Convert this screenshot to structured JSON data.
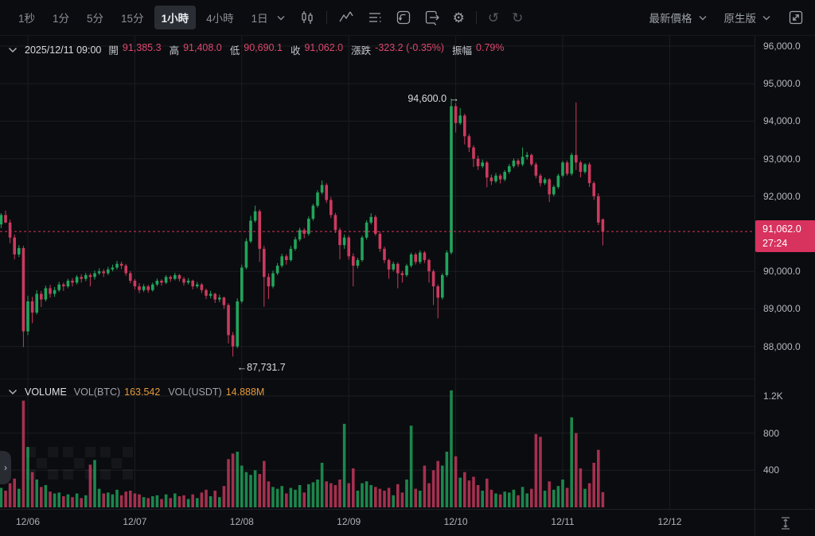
{
  "toolbar": {
    "timeframes": [
      {
        "label": "1秒",
        "active": false
      },
      {
        "label": "1分",
        "active": false
      },
      {
        "label": "5分",
        "active": false
      },
      {
        "label": "15分",
        "active": false
      },
      {
        "label": "1小時",
        "active": true
      },
      {
        "label": "4小時",
        "active": false
      },
      {
        "label": "1日",
        "active": false
      }
    ],
    "price_mode": "最新價格",
    "version": "原生版",
    "glyphs": {
      "settings": "⚙",
      "undo": "↺",
      "redo": "↻"
    }
  },
  "ohlc": {
    "datetime": "2025/12/11 09:00",
    "fields": [
      {
        "label": "開",
        "value": "91,385.3"
      },
      {
        "label": "高",
        "value": "91,408.0"
      },
      {
        "label": "低",
        "value": "90,690.1"
      },
      {
        "label": "收",
        "value": "91,062.0"
      },
      {
        "label": "漲跌",
        "value": "-323.2 (-0.35%)"
      },
      {
        "label": "振幅",
        "value": "0.79%"
      }
    ]
  },
  "volume_header": {
    "title": "VOLUME",
    "fields": [
      {
        "label": "VOL(BTC)",
        "value": "163.542"
      },
      {
        "label": "VOL(USDT)",
        "value": "14.888M"
      }
    ]
  },
  "axes": {
    "price_labels": [
      "96,000.0",
      "95,000.0",
      "94,000.0",
      "93,000.0",
      "92,000.0",
      "90,000.0",
      "89,000.0",
      "88,000.0"
    ],
    "volume_labels": [
      "1.2K",
      "800",
      "400"
    ],
    "time_labels": [
      "12/06",
      "12/07",
      "12/08",
      "12/09",
      "12/10",
      "12/11",
      "12/12"
    ]
  },
  "price_tag": {
    "price": "91,062.0",
    "countdown": "27:24"
  },
  "annotations": {
    "session_high": "94,600.0 →",
    "session_low": "←87,731.7"
  },
  "colors": {
    "up": "#21a55c",
    "down": "#cb3a5f",
    "tag": "#d8325e",
    "dashed_line": "#d8325e",
    "accent_orange": "#e29a3c",
    "grid": "#1a1d22"
  },
  "chart_data": {
    "type": "candlestick",
    "interval": "1小時",
    "current_price": 91062.0,
    "session_high": 94600.0,
    "session_low": 87731.7,
    "y_range": [
      87500,
      96200
    ],
    "columns": [
      "open",
      "high",
      "low",
      "close",
      "volume"
    ],
    "candles": [
      [
        91250,
        91550,
        91150,
        91500,
        210
      ],
      [
        91500,
        91620,
        91280,
        91300,
        180
      ],
      [
        91300,
        91380,
        90750,
        90900,
        260
      ],
      [
        90900,
        90980,
        90320,
        90450,
        310
      ],
      [
        90450,
        90700,
        90380,
        90620,
        200
      ],
      [
        90620,
        90680,
        87980,
        88400,
        1150
      ],
      [
        88400,
        89350,
        88300,
        89200,
        650
      ],
      [
        89200,
        89320,
        88620,
        88900,
        380
      ],
      [
        88900,
        89500,
        88850,
        89400,
        300
      ],
      [
        89400,
        89480,
        89050,
        89250,
        220
      ],
      [
        89250,
        89620,
        89200,
        89550,
        240
      ],
      [
        89550,
        89640,
        89300,
        89400,
        170
      ],
      [
        89400,
        89580,
        89320,
        89500,
        150
      ],
      [
        89500,
        89720,
        89450,
        89650,
        160
      ],
      [
        89650,
        89700,
        89480,
        89600,
        120
      ],
      [
        89600,
        89800,
        89550,
        89750,
        140
      ],
      [
        89750,
        89820,
        89600,
        89700,
        110
      ],
      [
        89700,
        89900,
        89650,
        89850,
        150
      ],
      [
        89850,
        89920,
        89700,
        89800,
        100
      ],
      [
        89800,
        89960,
        89740,
        89900,
        130
      ],
      [
        89900,
        89950,
        89600,
        89850,
        460
      ],
      [
        89850,
        90020,
        89780,
        89950,
        510
      ],
      [
        89950,
        90080,
        89900,
        90000,
        200
      ],
      [
        90000,
        90060,
        89850,
        89950,
        150
      ],
      [
        89950,
        90120,
        89900,
        90050,
        160
      ],
      [
        90050,
        90180,
        90000,
        90100,
        140
      ],
      [
        90100,
        90280,
        90050,
        90200,
        190
      ],
      [
        90200,
        90260,
        90060,
        90150,
        130
      ],
      [
        90150,
        90200,
        89880,
        89950,
        170
      ],
      [
        89950,
        90010,
        89680,
        89750,
        180
      ],
      [
        89750,
        89800,
        89520,
        89600,
        150
      ],
      [
        89600,
        89680,
        89420,
        89500,
        140
      ],
      [
        89500,
        89660,
        89450,
        89600,
        110
      ],
      [
        89600,
        89640,
        89430,
        89500,
        100
      ],
      [
        89500,
        89700,
        89460,
        89650,
        120
      ],
      [
        89650,
        89810,
        89600,
        89750,
        130
      ],
      [
        89750,
        89790,
        89620,
        89700,
        90
      ],
      [
        89700,
        89900,
        89660,
        89850,
        140
      ],
      [
        89850,
        89890,
        89720,
        89800,
        100
      ],
      [
        89800,
        89960,
        89760,
        89900,
        150
      ],
      [
        89900,
        89930,
        89730,
        89800,
        120
      ],
      [
        89800,
        89850,
        89620,
        89700,
        130
      ],
      [
        89700,
        89820,
        89650,
        89750,
        90
      ],
      [
        89750,
        89780,
        89520,
        89600,
        140
      ],
      [
        89600,
        89720,
        89550,
        89650,
        100
      ],
      [
        89650,
        89690,
        89420,
        89500,
        160
      ],
      [
        89500,
        89540,
        89260,
        89350,
        190
      ],
      [
        89350,
        89480,
        89280,
        89400,
        120
      ],
      [
        89400,
        89430,
        89160,
        89250,
        180
      ],
      [
        89250,
        89380,
        89180,
        89300,
        110
      ],
      [
        89300,
        89330,
        89000,
        89100,
        230
      ],
      [
        89100,
        89150,
        88080,
        88300,
        520
      ],
      [
        88300,
        88380,
        87731.7,
        88000,
        580
      ],
      [
        88000,
        89280,
        87950,
        89200,
        600
      ],
      [
        89200,
        90180,
        89150,
        90100,
        450
      ],
      [
        90100,
        90880,
        90050,
        90800,
        380
      ],
      [
        90800,
        91480,
        90750,
        91350,
        350
      ],
      [
        91350,
        91750,
        91300,
        91600,
        400
      ],
      [
        91600,
        91650,
        90250,
        90600,
        360
      ],
      [
        90600,
        90680,
        89060,
        89850,
        500
      ],
      [
        89850,
        89950,
        89260,
        89600,
        280
      ],
      [
        89600,
        90020,
        89550,
        89950,
        220
      ],
      [
        89950,
        90220,
        89900,
        90150,
        200
      ],
      [
        90150,
        90470,
        90100,
        90400,
        230
      ],
      [
        90400,
        90450,
        90180,
        90300,
        150
      ],
      [
        90300,
        90680,
        90260,
        90600,
        210
      ],
      [
        90600,
        90920,
        90550,
        90850,
        190
      ],
      [
        90850,
        91160,
        90800,
        91100,
        240
      ],
      [
        91100,
        91150,
        90880,
        91000,
        160
      ],
      [
        91000,
        91460,
        90950,
        91400,
        250
      ],
      [
        91400,
        91800,
        91350,
        91750,
        270
      ],
      [
        91750,
        92160,
        91700,
        92100,
        300
      ],
      [
        92100,
        92420,
        92050,
        92300,
        480
      ],
      [
        92300,
        92350,
        91820,
        91900,
        280
      ],
      [
        91900,
        91980,
        91420,
        91500,
        260
      ],
      [
        91500,
        91560,
        91020,
        91100,
        240
      ],
      [
        91100,
        91160,
        90320,
        90700,
        300
      ],
      [
        90700,
        90980,
        90600,
        90900,
        900
      ],
      [
        90900,
        90950,
        90310,
        90400,
        260
      ],
      [
        90400,
        90480,
        89600,
        90150,
        420
      ],
      [
        90150,
        90360,
        90080,
        90300,
        180
      ],
      [
        90300,
        90950,
        90250,
        90900,
        260
      ],
      [
        90900,
        91360,
        90850,
        91300,
        280
      ],
      [
        91300,
        91550,
        91250,
        91450,
        240
      ],
      [
        91450,
        91500,
        90950,
        91000,
        220
      ],
      [
        91000,
        91060,
        90520,
        90600,
        200
      ],
      [
        90600,
        90660,
        90220,
        90300,
        180
      ],
      [
        90300,
        90340,
        89800,
        90050,
        210
      ],
      [
        90050,
        90260,
        90000,
        90200,
        130
      ],
      [
        90200,
        90240,
        89550,
        89950,
        250
      ],
      [
        89950,
        90010,
        89700,
        89900,
        160
      ],
      [
        89900,
        90200,
        89850,
        90150,
        300
      ],
      [
        90150,
        90500,
        90100,
        90450,
        880
      ],
      [
        90450,
        90500,
        90180,
        90250,
        200
      ],
      [
        90250,
        90560,
        90200,
        90500,
        180
      ],
      [
        90500,
        90540,
        90220,
        90300,
        450
      ],
      [
        90300,
        90340,
        89700,
        90000,
        260
      ],
      [
        90000,
        90050,
        89100,
        89600,
        400
      ],
      [
        89600,
        89650,
        88750,
        89300,
        500
      ],
      [
        89300,
        89950,
        89250,
        89900,
        450
      ],
      [
        89900,
        90560,
        89850,
        90500,
        600
      ],
      [
        90500,
        94600,
        90450,
        94400,
        1260
      ],
      [
        94400,
        94480,
        93700,
        93950,
        550
      ],
      [
        93950,
        94350,
        93900,
        94150,
        320
      ],
      [
        94150,
        94200,
        93380,
        93600,
        380
      ],
      [
        93600,
        93660,
        93180,
        93300,
        290
      ],
      [
        93300,
        93360,
        92780,
        93000,
        330
      ],
      [
        93000,
        93080,
        92700,
        92800,
        240
      ],
      [
        92800,
        92980,
        92750,
        92900,
        180
      ],
      [
        92900,
        92940,
        92240,
        92500,
        310
      ],
      [
        92500,
        92580,
        92300,
        92400,
        190
      ],
      [
        92400,
        92620,
        92350,
        92550,
        150
      ],
      [
        92550,
        92600,
        92340,
        92450,
        140
      ],
      [
        92450,
        92700,
        92400,
        92650,
        170
      ],
      [
        92650,
        92860,
        92600,
        92800,
        160
      ],
      [
        92800,
        93010,
        92750,
        92950,
        190
      ],
      [
        92950,
        93000,
        92780,
        92850,
        130
      ],
      [
        92850,
        93300,
        92800,
        93050,
        220
      ],
      [
        93050,
        93180,
        92980,
        93100,
        150
      ],
      [
        93100,
        93140,
        92800,
        92850,
        200
      ],
      [
        92850,
        92900,
        92480,
        92550,
        790
      ],
      [
        92550,
        92600,
        92260,
        92350,
        760
      ],
      [
        92350,
        92500,
        92300,
        92450,
        180
      ],
      [
        92450,
        92480,
        91850,
        92050,
        280
      ],
      [
        92050,
        92300,
        92000,
        92250,
        190
      ],
      [
        92250,
        92600,
        92200,
        92550,
        230
      ],
      [
        92550,
        92950,
        92500,
        92900,
        300
      ],
      [
        92900,
        92950,
        92550,
        92600,
        210
      ],
      [
        92600,
        93160,
        92550,
        93100,
        970
      ],
      [
        93100,
        94500,
        92700,
        92900,
        800
      ],
      [
        92900,
        92950,
        92500,
        92650,
        420
      ],
      [
        92650,
        92880,
        92600,
        92850,
        200
      ],
      [
        92850,
        92900,
        92250,
        92350,
        260
      ],
      [
        92350,
        92400,
        91900,
        92000,
        480
      ],
      [
        92000,
        92080,
        91230,
        91300,
        620
      ],
      [
        91385.3,
        91408.0,
        90690.1,
        91062.0,
        164
      ]
    ]
  }
}
